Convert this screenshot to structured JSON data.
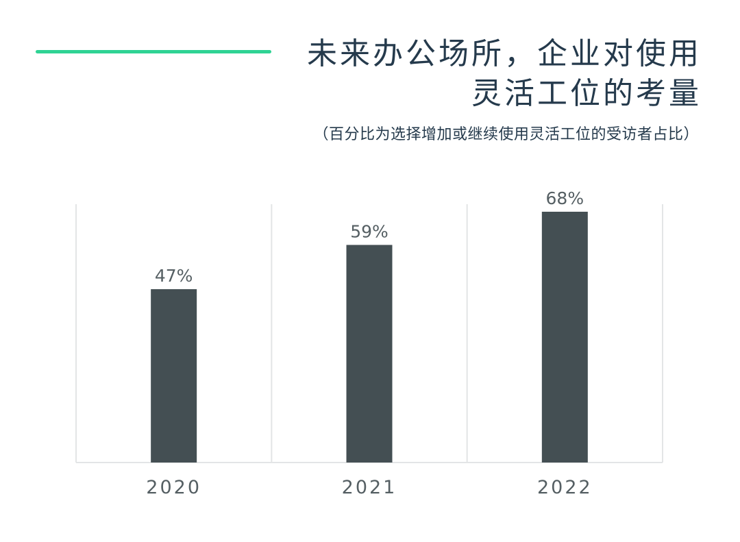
{
  "title_lines": [
    "未来办公场所，企业对使用",
    "灵活工位的考量"
  ],
  "subtitle": "（百分比为选择增加或继续使用灵活工位的受访者占比）",
  "colors": {
    "accent": "#2fd394",
    "bar": "#444f53",
    "text": "#253a4c",
    "label": "#555f63",
    "grid": "#e3e5e6"
  },
  "chart_data": {
    "type": "bar",
    "categories": [
      "2020",
      "2021",
      "2022"
    ],
    "values": [
      47,
      59,
      68
    ],
    "value_labels": [
      "47%",
      "59%",
      "68%"
    ],
    "ylim": [
      0,
      70
    ],
    "grid": "vertical separators",
    "legend": "none"
  }
}
